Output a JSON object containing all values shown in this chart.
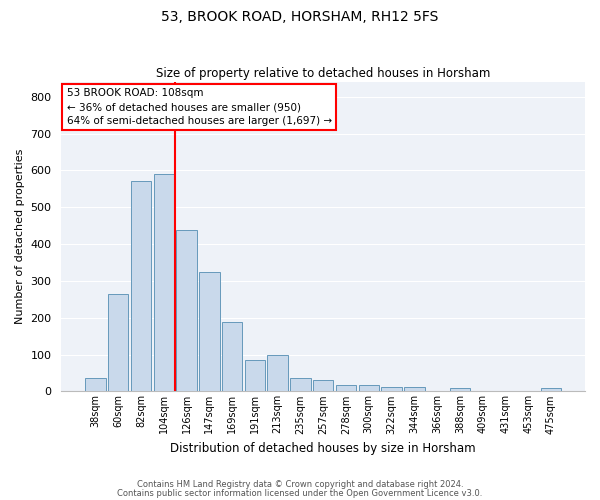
{
  "title1": "53, BROOK ROAD, HORSHAM, RH12 5FS",
  "title2": "Size of property relative to detached houses in Horsham",
  "xlabel": "Distribution of detached houses by size in Horsham",
  "ylabel": "Number of detached properties",
  "categories": [
    "38sqm",
    "60sqm",
    "82sqm",
    "104sqm",
    "126sqm",
    "147sqm",
    "169sqm",
    "191sqm",
    "213sqm",
    "235sqm",
    "257sqm",
    "278sqm",
    "300sqm",
    "322sqm",
    "344sqm",
    "366sqm",
    "388sqm",
    "409sqm",
    "431sqm",
    "453sqm",
    "475sqm"
  ],
  "values": [
    37,
    265,
    570,
    590,
    438,
    323,
    188,
    84,
    100,
    37,
    30,
    17,
    17,
    12,
    11,
    0,
    8,
    0,
    0,
    0,
    8
  ],
  "bar_color": "#c9d9eb",
  "bar_edge_color": "#6699bb",
  "vline_color": "red",
  "annotation_text": "53 BROOK ROAD: 108sqm\n← 36% of detached houses are smaller (950)\n64% of semi-detached houses are larger (1,697) →",
  "annotation_box_color": "white",
  "annotation_box_edge": "red",
  "ylim": [
    0,
    840
  ],
  "yticks": [
    0,
    100,
    200,
    300,
    400,
    500,
    600,
    700,
    800
  ],
  "background_color": "#eef2f8",
  "footer1": "Contains HM Land Registry data © Crown copyright and database right 2024.",
  "footer2": "Contains public sector information licensed under the Open Government Licence v3.0."
}
